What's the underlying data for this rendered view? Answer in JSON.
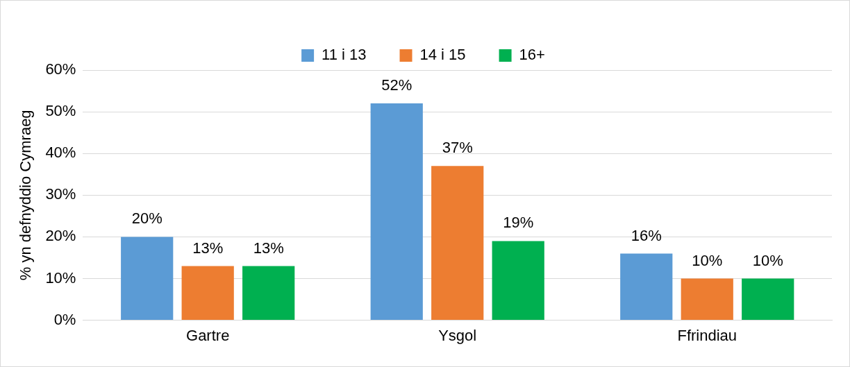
{
  "chart_data": {
    "type": "bar",
    "ylabel": "% yn defnyddio Cymraeg",
    "categories": [
      "Gartre",
      "Ysgol",
      "Ffrindiau"
    ],
    "series": [
      {
        "name": "11 i 13",
        "color": "#5b9bd5",
        "values": [
          20,
          52,
          16
        ],
        "value_labels": [
          "20%",
          "52%",
          "16%"
        ]
      },
      {
        "name": "14 i 15",
        "color": "#ed7d31",
        "values": [
          13,
          37,
          10
        ],
        "value_labels": [
          "13%",
          "37%",
          "10%"
        ]
      },
      {
        "name": "16+",
        "color": "#00b050",
        "values": [
          13,
          19,
          10
        ],
        "value_labels": [
          "13%",
          "19%",
          "10%"
        ]
      }
    ],
    "ylim": [
      0,
      60
    ],
    "yticks": [
      {
        "value": 0,
        "label": "0%"
      },
      {
        "value": 10,
        "label": "10%"
      },
      {
        "value": 20,
        "label": "20%"
      },
      {
        "value": 30,
        "label": "30%"
      },
      {
        "value": 40,
        "label": "40%"
      },
      {
        "value": 50,
        "label": "50%"
      },
      {
        "value": 60,
        "label": "60%"
      }
    ],
    "grid": "y",
    "legend": "top"
  }
}
